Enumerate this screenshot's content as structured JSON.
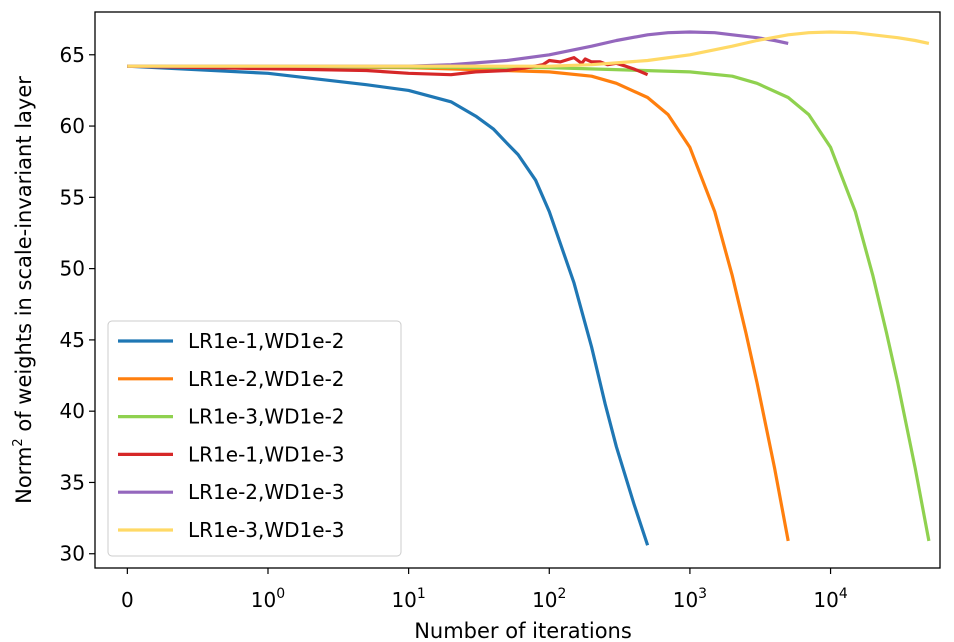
{
  "chart_data": {
    "type": "line",
    "xlabel": "Number of iterations",
    "ylabel_main": "Norm",
    "ylabel_sup": "2",
    "ylabel_rest": " of weights in scale-invariant layer",
    "xscale": "symlog",
    "xlim": [
      -0.23,
      60000
    ],
    "ylim": [
      29,
      68
    ],
    "xticks": [
      {
        "value": 0,
        "base": "0",
        "exp": ""
      },
      {
        "value": 1,
        "base": "10",
        "exp": "0"
      },
      {
        "value": 10,
        "base": "10",
        "exp": "1"
      },
      {
        "value": 100,
        "base": "10",
        "exp": "2"
      },
      {
        "value": 1000,
        "base": "10",
        "exp": "3"
      },
      {
        "value": 10000,
        "base": "10",
        "exp": "4"
      }
    ],
    "yticks": [
      30,
      35,
      40,
      45,
      50,
      55,
      60,
      65
    ],
    "legend_position": "lower-left",
    "series": [
      {
        "name": "LR1e-1,WD1e-2",
        "color": "#1f77b4",
        "x": [
          0,
          1,
          5,
          10,
          20,
          30,
          40,
          50,
          60,
          80,
          100,
          150,
          200,
          250,
          300,
          400,
          500
        ],
        "y": [
          64.2,
          63.7,
          62.9,
          62.5,
          61.7,
          60.7,
          59.8,
          58.8,
          58.0,
          56.2,
          54.0,
          49.0,
          44.5,
          40.5,
          37.5,
          33.5,
          30.6
        ]
      },
      {
        "name": "LR1e-2,WD1e-2",
        "color": "#ff7f0e",
        "x": [
          0,
          10,
          100,
          200,
          300,
          500,
          700,
          1000,
          1500,
          2000,
          2500,
          3000,
          4000,
          5000
        ],
        "y": [
          64.2,
          64.1,
          63.8,
          63.5,
          63.0,
          62.0,
          60.8,
          58.5,
          54.0,
          49.5,
          45.5,
          42.0,
          36.0,
          30.9
        ]
      },
      {
        "name": "LR1e-3,WD1e-2",
        "color": "#8fd14f",
        "x": [
          0,
          100,
          1000,
          2000,
          3000,
          5000,
          7000,
          10000,
          15000,
          20000,
          25000,
          30000,
          40000,
          50000
        ],
        "y": [
          64.2,
          64.1,
          63.8,
          63.5,
          63.0,
          62.0,
          60.8,
          58.5,
          54.0,
          49.5,
          45.5,
          42.0,
          36.0,
          30.9
        ]
      },
      {
        "name": "LR1e-1,WD1e-3",
        "color": "#d62728",
        "x": [
          0,
          5,
          10,
          20,
          30,
          50,
          70,
          90,
          100,
          120,
          150,
          170,
          180,
          200,
          230,
          260,
          300,
          350,
          400,
          450,
          500
        ],
        "y": [
          64.2,
          63.9,
          63.7,
          63.6,
          63.8,
          63.9,
          64.1,
          64.3,
          64.6,
          64.5,
          64.8,
          64.4,
          64.7,
          64.5,
          64.5,
          64.3,
          64.4,
          64.2,
          64.0,
          63.8,
          63.6
        ]
      },
      {
        "name": "LR1e-2,WD1e-3",
        "color": "#9467bd",
        "x": [
          0,
          10,
          20,
          50,
          100,
          200,
          300,
          500,
          700,
          1000,
          1500,
          2000,
          3000,
          4000,
          5000
        ],
        "y": [
          64.2,
          64.2,
          64.3,
          64.6,
          65.0,
          65.6,
          66.0,
          66.4,
          66.55,
          66.6,
          66.55,
          66.4,
          66.2,
          66.0,
          65.8
        ]
      },
      {
        "name": "LR1e-3,WD1e-3",
        "color": "#ffd966",
        "x": [
          0,
          100,
          200,
          500,
          1000,
          2000,
          3000,
          5000,
          7000,
          10000,
          15000,
          20000,
          30000,
          40000,
          50000
        ],
        "y": [
          64.2,
          64.2,
          64.3,
          64.6,
          65.0,
          65.6,
          66.0,
          66.4,
          66.55,
          66.6,
          66.55,
          66.4,
          66.2,
          66.0,
          65.8
        ]
      }
    ]
  }
}
